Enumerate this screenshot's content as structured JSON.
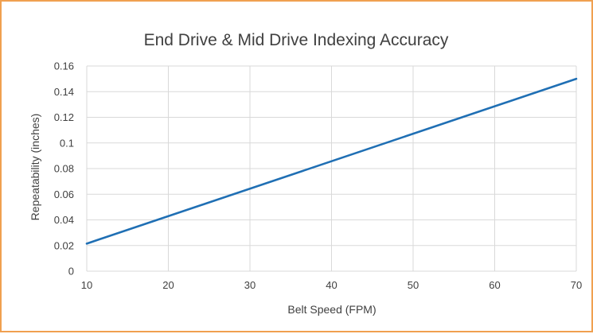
{
  "chart_data": {
    "type": "line",
    "title": "End Drive & Mid Drive Indexing Accuracy",
    "xlabel": "Belt Speed (FPM)",
    "ylabel": "Repeatability (inches)",
    "xlim": [
      10,
      70
    ],
    "ylim": [
      0,
      0.16
    ],
    "x_ticks": [
      10,
      20,
      30,
      40,
      50,
      60,
      70
    ],
    "y_ticks": [
      0,
      0.02,
      0.04,
      0.06,
      0.08,
      0.1,
      0.12,
      0.14,
      0.16
    ],
    "x_tick_labels": [
      "10",
      "20",
      "30",
      "40",
      "50",
      "60",
      "70"
    ],
    "y_tick_labels": [
      "0",
      "0.02",
      "0.04",
      "0.06",
      "0.08",
      "0.1",
      "0.12",
      "0.14",
      "0.16"
    ],
    "grid": true,
    "legend": "none",
    "series": [
      {
        "color": "#1f6fb4",
        "x": [
          10,
          70
        ],
        "y": [
          0.0215,
          0.15
        ]
      }
    ],
    "colors": {
      "frame_border": "#f0a050",
      "grid": "#d9d9d9",
      "text": "#404040"
    }
  }
}
